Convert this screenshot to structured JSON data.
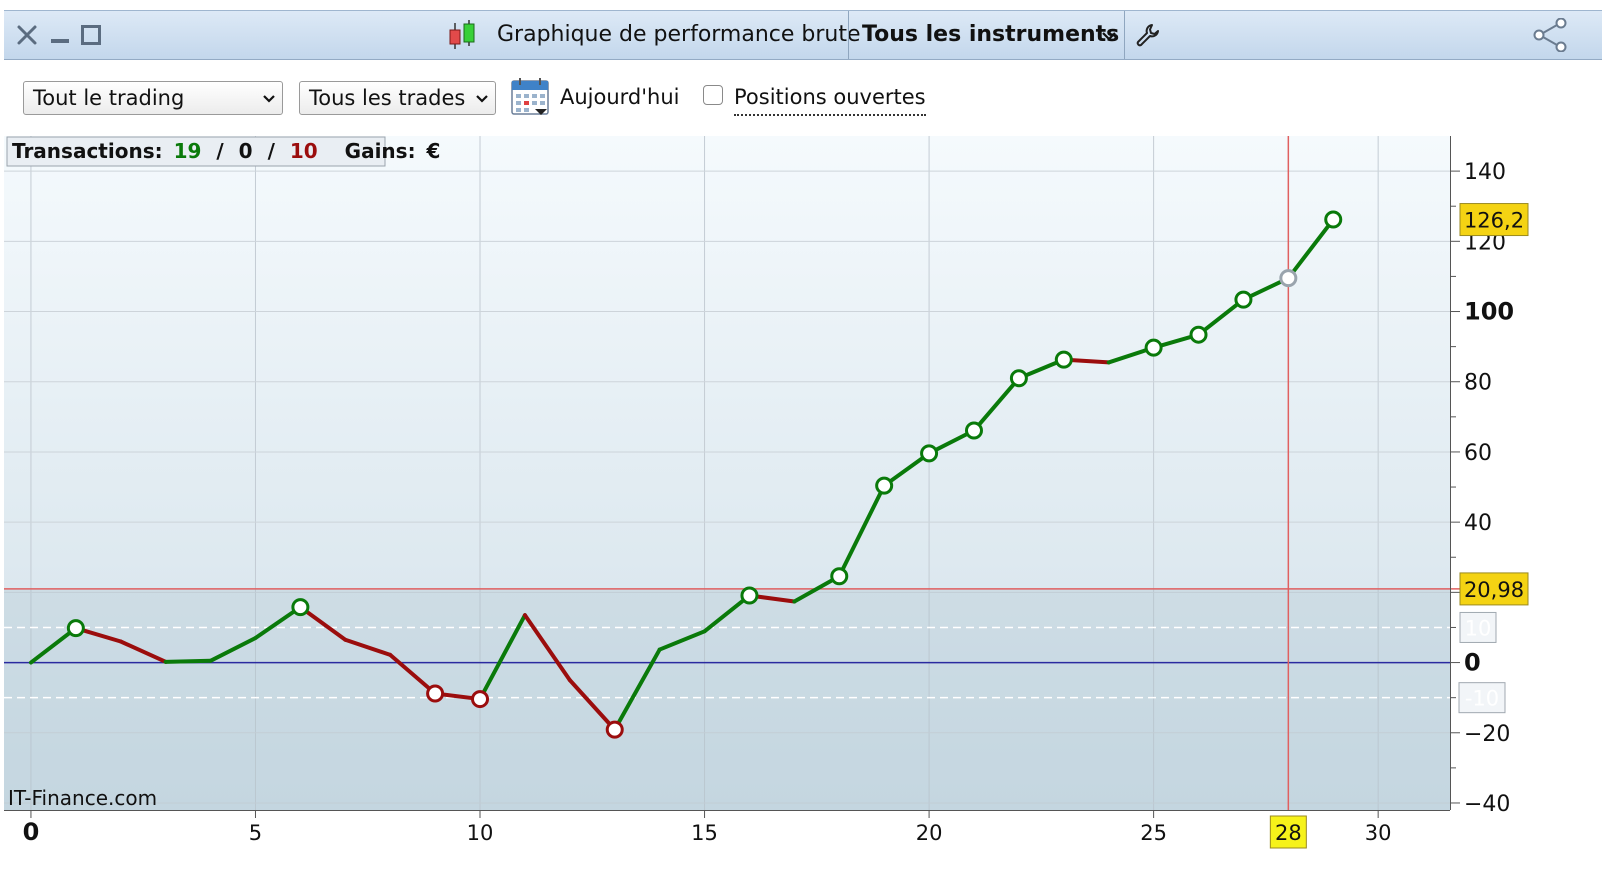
{
  "window": {
    "title": "Graphique de performance brute",
    "instruments_label": "Tous les instruments"
  },
  "toolbar": {
    "trading_select": "Tout le trading",
    "trades_select": "Tous les trades",
    "today_label": "Aujourd'hui",
    "open_positions_label": "Positions ouvertes"
  },
  "stats": {
    "transactions_label": "Transactions:",
    "winners": "19",
    "neutral": "0",
    "losers": "10",
    "sep": "/",
    "gains_label": "Gains:",
    "currency": "€"
  },
  "watermark": "IT-Finance.com",
  "colors": {
    "up": "#0a7a0a",
    "down": "#9b0d0d",
    "zero_line": "#2a2aa0",
    "ref_line": "#e06060",
    "cursor_line": "#e06060",
    "badge": "#f4d313",
    "cursor_badge": "#f6f21a"
  },
  "chart_data": {
    "type": "line",
    "x": [
      0,
      1,
      2,
      3,
      4,
      5,
      6,
      7,
      8,
      9,
      10,
      11,
      12,
      13,
      14,
      15,
      16,
      17,
      18,
      19,
      20,
      21,
      22,
      23,
      24,
      25,
      26,
      27,
      28,
      29
    ],
    "y": [
      0,
      9.8,
      6,
      0.2,
      0.5,
      7,
      15.8,
      6.5,
      2.2,
      -8.8,
      -10.4,
      13.5,
      -5,
      -19.1,
      3.7,
      8.9,
      19.1,
      17.4,
      24.6,
      50.4,
      59.6,
      66.1,
      81,
      86.3,
      85.5,
      89.7,
      93.4,
      103.4,
      109.5,
      126.2
    ],
    "segment_direction": [
      "up",
      "down",
      "down",
      "up",
      "up",
      "up",
      "down",
      "down",
      "down",
      "down",
      "up",
      "down",
      "down",
      "up",
      "up",
      "up",
      "down",
      "up",
      "up",
      "up",
      "up",
      "up",
      "up",
      "down",
      "up",
      "up",
      "up",
      "up",
      "up"
    ],
    "markers": [
      1,
      6,
      9,
      10,
      13,
      16,
      18,
      19,
      20,
      21,
      22,
      23,
      25,
      26,
      27,
      28,
      29
    ],
    "highlighted_marker": 28,
    "x_ticks": [
      0,
      5,
      10,
      15,
      20,
      25,
      30
    ],
    "x_range": [
      -0.6,
      31.6
    ],
    "y_ticks_labeled": [
      -40,
      -20,
      0,
      20,
      40,
      60,
      80,
      100,
      120,
      140
    ],
    "y_range": [
      -42,
      150
    ],
    "zero_line": 0,
    "reference_line": 20.98,
    "reference_label": "20,98",
    "band_lines": [
      10,
      -10
    ],
    "band_labels": [
      "10",
      "-10"
    ],
    "last_value_label": "126,2",
    "last_value": 126.2,
    "cursor_x": 28,
    "cursor_label": "28",
    "grid": true
  }
}
